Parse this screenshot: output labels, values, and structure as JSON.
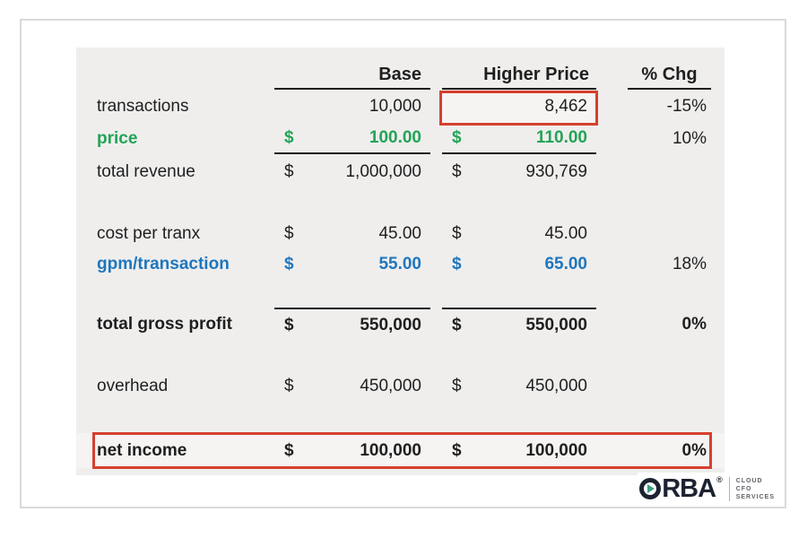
{
  "table": {
    "headers": {
      "base": "Base",
      "higher": "Higher Price",
      "pct": "% Chg"
    },
    "rows": [
      {
        "label": "transactions",
        "base_cur": "",
        "base_val": "10,000",
        "hi_cur": "",
        "hi_val": "8,462",
        "pct": "-15%"
      },
      {
        "label": "price",
        "base_cur": "$",
        "base_val": "100.00",
        "hi_cur": "$",
        "hi_val": "110.00",
        "pct": "10%"
      },
      {
        "label": "total revenue",
        "base_cur": "$",
        "base_val": "1,000,000",
        "hi_cur": "$",
        "hi_val": "930,769",
        "pct": ""
      },
      {
        "label": "cost per tranx",
        "base_cur": "$",
        "base_val": "45.00",
        "hi_cur": "$",
        "hi_val": "45.00",
        "pct": ""
      },
      {
        "label": "gpm/transaction",
        "base_cur": "$",
        "base_val": "55.00",
        "hi_cur": "$",
        "hi_val": "65.00",
        "pct": "18%"
      },
      {
        "label": "total gross profit",
        "base_cur": "$",
        "base_val": "550,000",
        "hi_cur": "$",
        "hi_val": "550,000",
        "pct": "0%"
      },
      {
        "label": "overhead",
        "base_cur": "$",
        "base_val": "450,000",
        "hi_cur": "$",
        "hi_val": "450,000",
        "pct": ""
      },
      {
        "label": "net income",
        "base_cur": "$",
        "base_val": "100,000",
        "hi_cur": "$",
        "hi_val": "100,000",
        "pct": "0%"
      }
    ]
  },
  "highlights": {
    "boxed_cell": "Higher Price transactions value 8,462",
    "boxed_row": "net income row"
  },
  "logo": {
    "brand": "RBA",
    "reg": "®",
    "tagline": {
      "line1": "CLOUD",
      "line2": "CFO",
      "line3": "SERVICES"
    }
  },
  "colors": {
    "green_text": "#22a456",
    "blue_text": "#1f76bd",
    "red_box": "#d5402e",
    "sheet_bg": "#efeeed",
    "text": "#1f1f1f",
    "brand_navy": "#1c2330",
    "brand_teal": "#3ba184"
  }
}
